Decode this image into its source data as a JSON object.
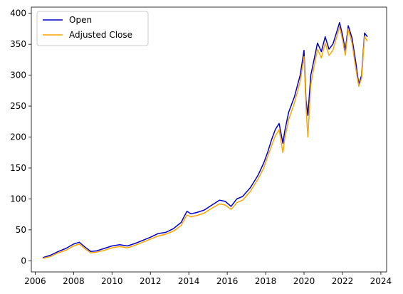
{
  "chart_data": {
    "type": "line",
    "title": "",
    "xlabel": "",
    "ylabel": "",
    "xlim": [
      2005.8,
      2024.3
    ],
    "ylim": [
      -18,
      410
    ],
    "xticks": [
      2006,
      2008,
      2010,
      2012,
      2014,
      2016,
      2018,
      2020,
      2022,
      2024
    ],
    "xtick_labels": [
      "2006",
      "2008",
      "2010",
      "2012",
      "2014",
      "2016",
      "2018",
      "2020",
      "2022",
      "2024"
    ],
    "yticks": [
      0,
      50,
      100,
      150,
      200,
      250,
      300,
      350,
      400
    ],
    "ytick_labels": [
      "0",
      "50",
      "100",
      "150",
      "200",
      "250",
      "300",
      "350",
      "400"
    ],
    "legend_position": "upper-left",
    "series": [
      {
        "name": "Open",
        "color": "#0000cc",
        "x": [
          2006.4,
          2006.8,
          2007.2,
          2007.6,
          2008.0,
          2008.3,
          2008.6,
          2008.9,
          2009.2,
          2009.6,
          2010.0,
          2010.4,
          2010.8,
          2011.2,
          2011.6,
          2012.0,
          2012.4,
          2012.8,
          2013.2,
          2013.6,
          2013.9,
          2014.1,
          2014.4,
          2014.8,
          2015.2,
          2015.6,
          2015.9,
          2016.2,
          2016.5,
          2016.8,
          2017.2,
          2017.6,
          2017.9,
          2018.1,
          2018.3,
          2018.5,
          2018.7,
          2018.9,
          2019.0,
          2019.2,
          2019.5,
          2019.8,
          2020.0,
          2020.1,
          2020.2,
          2020.35,
          2020.5,
          2020.7,
          2020.9,
          2021.1,
          2021.3,
          2021.5,
          2021.7,
          2021.85,
          2022.0,
          2022.15,
          2022.3,
          2022.5,
          2022.7,
          2022.85,
          2023.0,
          2023.15,
          2023.3
        ],
        "y": [
          5,
          9,
          15,
          20,
          27,
          30,
          22,
          15,
          16,
          20,
          24,
          26,
          24,
          28,
          33,
          38,
          44,
          46,
          52,
          62,
          80,
          76,
          78,
          82,
          90,
          98,
          96,
          88,
          100,
          104,
          118,
          138,
          158,
          175,
          195,
          212,
          222,
          190,
          210,
          240,
          265,
          300,
          340,
          260,
          235,
          300,
          322,
          352,
          338,
          362,
          342,
          350,
          370,
          385,
          365,
          340,
          380,
          360,
          320,
          285,
          300,
          368,
          362
        ]
      },
      {
        "name": "Adjusted Close",
        "color": "#ffa500",
        "x": [
          2006.4,
          2006.8,
          2007.2,
          2007.6,
          2008.0,
          2008.3,
          2008.6,
          2008.9,
          2009.2,
          2009.6,
          2010.0,
          2010.4,
          2010.8,
          2011.2,
          2011.6,
          2012.0,
          2012.4,
          2012.8,
          2013.2,
          2013.6,
          2013.9,
          2014.1,
          2014.4,
          2014.8,
          2015.2,
          2015.6,
          2015.9,
          2016.2,
          2016.5,
          2016.8,
          2017.2,
          2017.6,
          2017.9,
          2018.1,
          2018.3,
          2018.5,
          2018.7,
          2018.9,
          2019.0,
          2019.2,
          2019.5,
          2019.8,
          2020.0,
          2020.1,
          2020.2,
          2020.35,
          2020.5,
          2020.7,
          2020.9,
          2021.1,
          2021.3,
          2021.5,
          2021.7,
          2021.85,
          2022.0,
          2022.15,
          2022.3,
          2022.5,
          2022.7,
          2022.85,
          2023.0,
          2023.15,
          2023.3
        ],
        "y": [
          4,
          7,
          13,
          17,
          24,
          27,
          19,
          13,
          14,
          17,
          21,
          23,
          21,
          25,
          30,
          35,
          40,
          43,
          48,
          57,
          74,
          71,
          73,
          77,
          85,
          92,
          90,
          83,
          94,
          98,
          112,
          132,
          150,
          168,
          185,
          202,
          212,
          175,
          198,
          228,
          255,
          290,
          330,
          250,
          200,
          285,
          310,
          342,
          328,
          352,
          332,
          340,
          362,
          378,
          358,
          332,
          375,
          352,
          310,
          282,
          295,
          362,
          355
        ]
      }
    ]
  }
}
